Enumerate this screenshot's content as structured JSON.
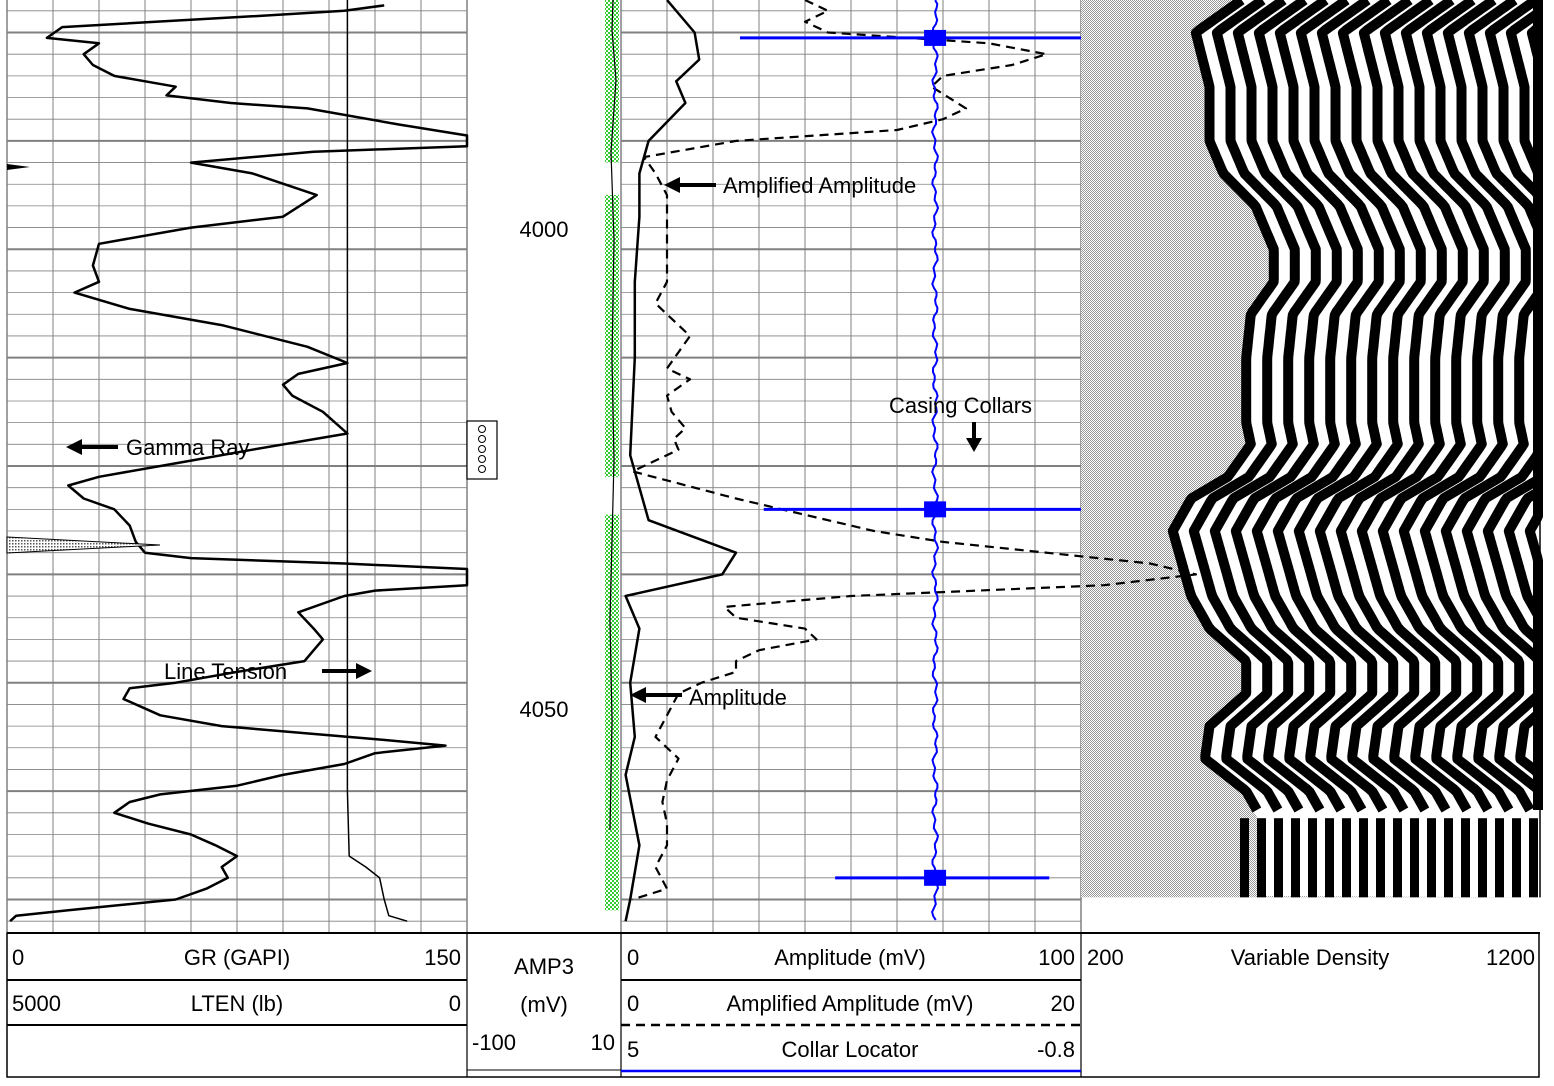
{
  "depth_track": {
    "labels": [
      "4000",
      "4050"
    ],
    "depths": [
      4000,
      4050
    ]
  },
  "annotations": {
    "gamma_ray": "Gamma Ray",
    "line_tension": "Line Tension",
    "amplified_amplitude": "Amplified Amplitude",
    "amplitude": "Amplitude",
    "casing_collars": "Casing Collars"
  },
  "header": {
    "track1": {
      "gr": {
        "min": "0",
        "name": "GR (GAPI)",
        "max": "150"
      },
      "lten": {
        "min": "5000",
        "name": "LTEN (lb)",
        "max": "0"
      }
    },
    "amp3": {
      "name": "AMP3",
      "unit": "(mV)",
      "min": "-100",
      "max": "10"
    },
    "track3": {
      "amp": {
        "min": "0",
        "name": "Amplitude (mV)",
        "max": "100"
      },
      "amp_amplified": {
        "min": "0",
        "name": "Amplified Amplitude (mV)",
        "max": "20"
      },
      "ccl": {
        "min": "5",
        "name": "Collar Locator",
        "max": "-0.8"
      }
    },
    "vdl": {
      "min": "200",
      "name": "Variable Density",
      "max": "1200"
    }
  },
  "colors": {
    "grid": "#808080",
    "collar_locator": "#0000ff",
    "amp3_fill": "#33cc33",
    "curve": "#000000"
  },
  "chart_data": {
    "type": "line",
    "depth_unit": "ft",
    "depth_range": [
      3977,
      4063
    ],
    "tracks": [
      {
        "name": "track1",
        "series": [
          {
            "name": "GR (GAPI)",
            "range": [
              0,
              150
            ],
            "style": "solid",
            "points": [
              [
                3977.5,
                123
              ],
              [
                3978,
                110
              ],
              [
                3978.5,
                80
              ],
              [
                3979.5,
                18
              ],
              [
                3980.5,
                13
              ],
              [
                3981,
                30
              ],
              [
                3982,
                25
              ],
              [
                3983,
                28
              ],
              [
                3984,
                35
              ],
              [
                3985,
                55
              ],
              [
                3985.8,
                52
              ],
              [
                3986.5,
                73
              ],
              [
                3987,
                98
              ],
              [
                3988.5,
                128
              ],
              [
                3989.5,
                150
              ],
              [
                3990.5,
                150
              ],
              [
                3991,
                100
              ],
              [
                3992,
                60
              ],
              [
                3993,
                80
              ],
              [
                3995,
                101
              ],
              [
                3997,
                90
              ],
              [
                3998,
                60
              ],
              [
                3999.5,
                30
              ],
              [
                4001.5,
                28
              ],
              [
                4003,
                30
              ],
              [
                4004,
                22
              ],
              [
                4005.5,
                40
              ],
              [
                4007,
                70
              ],
              [
                4009,
                98
              ],
              [
                4010.5,
                111
              ],
              [
                4011.5,
                95
              ],
              [
                4012.5,
                90
              ],
              [
                4013.5,
                93
              ],
              [
                4015,
                103
              ],
              [
                4017,
                111
              ],
              [
                4018.5,
                80
              ],
              [
                4019.5,
                60
              ],
              [
                4021,
                30
              ],
              [
                4021.8,
                20
              ],
              [
                4023,
                25
              ],
              [
                4024,
                35
              ],
              [
                4025.5,
                40
              ],
              [
                4027,
                42
              ],
              [
                4028,
                45
              ],
              [
                4028.5,
                60
              ],
              [
                4029,
                110
              ],
              [
                4029.5,
                150
              ],
              [
                4031,
                150
              ],
              [
                4031.5,
                120
              ],
              [
                4032,
                110
              ],
              [
                4033.5,
                95
              ],
              [
                4035,
                100
              ],
              [
                4036,
                103
              ],
              [
                4037,
                100
              ],
              [
                4038,
                97
              ],
              [
                4039,
                75
              ],
              [
                4040,
                55
              ],
              [
                4040.5,
                40
              ],
              [
                4041.5,
                38
              ],
              [
                4043,
                50
              ],
              [
                4044,
                70
              ],
              [
                4045.2,
                120
              ],
              [
                4045.8,
                143
              ],
              [
                4046.5,
                120
              ],
              [
                4047.5,
                110
              ],
              [
                4048.5,
                90
              ],
              [
                4049.5,
                75
              ],
              [
                4050.3,
                50
              ],
              [
                4051,
                40
              ],
              [
                4052,
                35
              ],
              [
                4053,
                46
              ],
              [
                4054,
                60
              ],
              [
                4055,
                68
              ],
              [
                4056,
                75
              ],
              [
                4057,
                70
              ],
              [
                4058,
                72
              ],
              [
                4059,
                65
              ],
              [
                4060,
                55
              ],
              [
                4061,
                20
              ],
              [
                4061.5,
                3
              ],
              [
                4062,
                1
              ]
            ]
          },
          {
            "name": "LTEN (lb)",
            "range": [
              5000,
              0
            ],
            "style": "solid",
            "points": [
              [
                3977,
                1300
              ],
              [
                4050,
                1300
              ],
              [
                4056,
                1280
              ],
              [
                4057,
                1100
              ],
              [
                4058,
                950
              ],
              [
                4060,
                900
              ],
              [
                4061.5,
                850
              ],
              [
                4062,
                650
              ]
            ]
          }
        ]
      },
      {
        "name": "amp3",
        "series": [
          {
            "name": "AMP3 (mV)",
            "range": [
              -100,
              10
            ],
            "style": "filled",
            "points": [
              [
                3977,
                0
              ],
              [
                4003,
                -1
              ],
              [
                4020,
                -2
              ],
              [
                4030,
                0
              ],
              [
                4060,
                -1
              ]
            ]
          }
        ]
      },
      {
        "name": "track3",
        "series": [
          {
            "name": "Amplitude (mV)",
            "range": [
              0,
              100
            ],
            "style": "solid",
            "points": [
              [
                3977,
                10
              ],
              [
                3980,
                16
              ],
              [
                3982.5,
                17
              ],
              [
                3984.5,
                12
              ],
              [
                3986.5,
                14
              ],
              [
                3990,
                6
              ],
              [
                3993,
                4
              ],
              [
                3997,
                4
              ],
              [
                4003,
                3
              ],
              [
                4010,
                3
              ],
              [
                4019,
                2
              ],
              [
                4025,
                6
              ],
              [
                4028,
                25
              ],
              [
                4030,
                22
              ],
              [
                4032,
                1
              ],
              [
                4035,
                4
              ],
              [
                4040,
                2
              ],
              [
                4045,
                3
              ],
              [
                4048.5,
                1
              ],
              [
                4055,
                4
              ],
              [
                4060,
                2
              ],
              [
                4062,
                1
              ]
            ]
          },
          {
            "name": "Amplified Amplitude (mV)",
            "range": [
              0,
              20
            ],
            "style": "dashed",
            "points": [
              [
                3977,
                8
              ],
              [
                3978,
                9
              ],
              [
                3979,
                8
              ],
              [
                3980,
                9
              ],
              [
                3981,
                16
              ],
              [
                3982,
                18.5
              ],
              [
                3983,
                17
              ],
              [
                3984,
                14
              ],
              [
                3985,
                13.5
              ],
              [
                3987,
                15
              ],
              [
                3988,
                14
              ],
              [
                3989,
                12
              ],
              [
                3990,
                5
              ],
              [
                3991.5,
                1
              ],
              [
                3993,
                1.5
              ],
              [
                3995,
                2
              ],
              [
                3997,
                2
              ],
              [
                3999,
                2
              ],
              [
                4001,
                2
              ],
              [
                4003,
                2
              ],
              [
                4005,
                1.5
              ],
              [
                4006,
                2
              ],
              [
                4008,
                3
              ],
              [
                4009.5,
                2.5
              ],
              [
                4011,
                2
              ],
              [
                4012,
                3
              ],
              [
                4013.5,
                2
              ],
              [
                4015,
                2.2
              ],
              [
                4016.5,
                2.8
              ],
              [
                4017.5,
                2.3
              ],
              [
                4018.5,
                2.5
              ],
              [
                4020.5,
                0.5
              ],
              [
                4023,
                5
              ],
              [
                4024.5,
                8
              ],
              [
                4026,
                11
              ],
              [
                4027,
                14
              ],
              [
                4029,
                23
              ],
              [
                4030,
                25
              ],
              [
                4031,
                21
              ],
              [
                4032,
                10
              ],
              [
                4033,
                4.5
              ],
              [
                4034,
                5
              ],
              [
                4035,
                8
              ],
              [
                4036,
                8.5
              ],
              [
                4037,
                6
              ],
              [
                4038,
                5
              ],
              [
                4039,
                5
              ],
              [
                4040,
                3.5
              ],
              [
                4041,
                2.5
              ],
              [
                4043,
                2
              ],
              [
                4045,
                1.5
              ],
              [
                4047,
                2.5
              ],
              [
                4049,
                2
              ],
              [
                4051,
                1.8
              ],
              [
                4053,
                2
              ],
              [
                4055,
                2
              ],
              [
                4057,
                1.5
              ],
              [
                4059,
                2
              ],
              [
                4060,
                0.5
              ]
            ]
          },
          {
            "name": "Collar Locator",
            "range": [
              5,
              -0.8
            ],
            "style": "solid",
            "points": [
              [
                3977,
                1.04
              ],
              [
                3980.5,
                1.04
              ],
              [
                4023.7,
                1.04
              ],
              [
                4060,
                1.04
              ]
            ],
            "collars": [
              {
                "depth": 3980.5,
                "left": 3.5,
                "right": -0.8
              },
              {
                "depth": 4024,
                "left": 3.2,
                "right": -0.8
              },
              {
                "depth": 4058,
                "left": 2.3,
                "right": -0.4
              }
            ]
          }
        ]
      },
      {
        "name": "vdl",
        "series": [
          {
            "name": "Variable Density",
            "range": [
              200,
              1200
            ],
            "style": "image",
            "arrival_points": [
              [
                3977,
                550
              ],
              [
                3980,
                450
              ],
              [
                3985,
                480
              ],
              [
                3990,
                480
              ],
              [
                3993,
                510
              ],
              [
                3996,
                580
              ],
              [
                4000,
                620
              ],
              [
                4003,
                620
              ],
              [
                4006,
                570
              ],
              [
                4010,
                560
              ],
              [
                4013,
                560
              ],
              [
                4016,
                560
              ],
              [
                4018,
                570
              ],
              [
                4021,
                520
              ],
              [
                4023,
                440
              ],
              [
                4026,
                400
              ],
              [
                4029,
                420
              ],
              [
                4032,
                440
              ],
              [
                4035,
                480
              ],
              [
                4038,
                560
              ],
              [
                4041,
                560
              ],
              [
                4044,
                480
              ],
              [
                4047,
                470
              ],
              [
                4050,
                560
              ],
              [
                4053,
                600
              ],
              [
                4056,
                600
              ]
            ]
          }
        ]
      }
    ]
  }
}
